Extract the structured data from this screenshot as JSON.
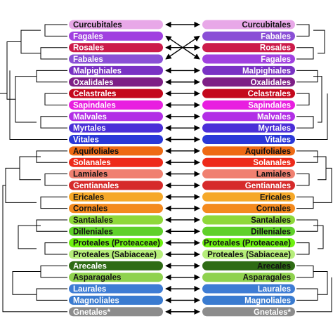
{
  "left_column": [
    {
      "label": "Curcubitales",
      "color": "#e8a8e8",
      "text_color": "#111111"
    },
    {
      "label": "Fagales",
      "color": "#a040e0",
      "text_color": "#ffffff"
    },
    {
      "label": "Rosales",
      "color": "#cc1b4a",
      "text_color": "#ffffff"
    },
    {
      "label": "Fabales",
      "color": "#8a4fd6",
      "text_color": "#ffffff"
    },
    {
      "label": "Malpighiales",
      "color": "#7a32c4",
      "text_color": "#ffffff"
    },
    {
      "label": "Oxalidales",
      "color": "#7e1f86",
      "text_color": "#ffffff"
    },
    {
      "label": "Celastrales",
      "color": "#c4081c",
      "text_color": "#ffffff"
    },
    {
      "label": "Sapindales",
      "color": "#e81fe0",
      "text_color": "#ffffff"
    },
    {
      "label": "Malvales",
      "color": "#b22ee6",
      "text_color": "#ffffff"
    },
    {
      "label": "Myrtales",
      "color": "#4a2ed8",
      "text_color": "#ffffff"
    },
    {
      "label": "Vitales",
      "color": "#2a38d8",
      "text_color": "#ffffff"
    },
    {
      "label": "Aquifoliales",
      "color": "#ee6a14",
      "text_color": "#111111"
    },
    {
      "label": "Solanales",
      "color": "#ee2a1a",
      "text_color": "#ffffff"
    },
    {
      "label": "Lamiales",
      "color": "#f08070",
      "text_color": "#111111"
    },
    {
      "label": "Gentianales",
      "color": "#d62a2a",
      "text_color": "#ffffff"
    },
    {
      "label": "Ericales",
      "color": "#f6a828",
      "text_color": "#111111"
    },
    {
      "label": "Cornales",
      "color": "#f48a1e",
      "text_color": "#111111"
    },
    {
      "label": "Santalales",
      "color": "#8ed83a",
      "text_color": "#111111"
    },
    {
      "label": "Dilleniales",
      "color": "#5fd02a",
      "text_color": "#111111"
    },
    {
      "label": "Proteales (Proteaceae)",
      "color": "#6ef010",
      "text_color": "#111111"
    },
    {
      "label": "Proteales (Sabiaceae)",
      "color": "#b6ee7a",
      "text_color": "#111111"
    },
    {
      "label": "Arecales",
      "color": "#2e6b14",
      "text_color": "#ffffff"
    },
    {
      "label": "Asparagales",
      "color": "#8fd24e",
      "text_color": "#111111"
    },
    {
      "label": "Laurales",
      "color": "#3e7cd4",
      "text_color": "#ffffff"
    },
    {
      "label": "Magnoliales",
      "color": "#3a7bd0",
      "text_color": "#ffffff"
    },
    {
      "label": "Gnetales*",
      "color": "#8c8c8c",
      "text_color": "#ffffff"
    }
  ],
  "right_column": [
    {
      "label": "Curcubitales",
      "color": "#e8a8e8",
      "text_color": "#111111"
    },
    {
      "label": "Fabales",
      "color": "#8a4fd6",
      "text_color": "#ffffff"
    },
    {
      "label": "Rosales",
      "color": "#cc1b4a",
      "text_color": "#ffffff"
    },
    {
      "label": "Fagales",
      "color": "#a040e0",
      "text_color": "#ffffff"
    },
    {
      "label": "Malpighiales",
      "color": "#7a32c4",
      "text_color": "#ffffff"
    },
    {
      "label": "Oxalidales",
      "color": "#7e1f86",
      "text_color": "#ffffff"
    },
    {
      "label": "Celastrales",
      "color": "#c4081c",
      "text_color": "#ffffff"
    },
    {
      "label": "Sapindales",
      "color": "#e81fe0",
      "text_color": "#ffffff"
    },
    {
      "label": "Malvales",
      "color": "#b22ee6",
      "text_color": "#ffffff"
    },
    {
      "label": "Myrtales",
      "color": "#4a2ed8",
      "text_color": "#ffffff"
    },
    {
      "label": "Vitales",
      "color": "#2a38d8",
      "text_color": "#ffffff"
    },
    {
      "label": "Aquifoliales",
      "color": "#ee6a14",
      "text_color": "#111111"
    },
    {
      "label": "Solanales",
      "color": "#ee2a1a",
      "text_color": "#ffffff"
    },
    {
      "label": "Lamiales",
      "color": "#f08070",
      "text_color": "#111111"
    },
    {
      "label": "Gentianales",
      "color": "#d62a2a",
      "text_color": "#ffffff"
    },
    {
      "label": "Ericales",
      "color": "#f6a828",
      "text_color": "#111111"
    },
    {
      "label": "Cornales",
      "color": "#f48a1e",
      "text_color": "#111111"
    },
    {
      "label": "Santalales",
      "color": "#8ed83a",
      "text_color": "#111111"
    },
    {
      "label": "Dilleniales",
      "color": "#5fd02a",
      "text_color": "#111111"
    },
    {
      "label": "Proteales (Proteaceae)",
      "color": "#6ef010",
      "text_color": "#111111"
    },
    {
      "label": "Proteales (Sabiaceae)",
      "color": "#b6ee7a",
      "text_color": "#111111"
    },
    {
      "label": "Arecales",
      "color": "#2e6b14",
      "text_color": "#111111"
    },
    {
      "label": "Asparagales",
      "color": "#8fd24e",
      "text_color": "#111111"
    },
    {
      "label": "Laurales",
      "color": "#3e7cd4",
      "text_color": "#ffffff"
    },
    {
      "label": "Magnoliales",
      "color": "#3a7bd0",
      "text_color": "#ffffff"
    },
    {
      "label": "Gnetales*",
      "color": "#8c8c8c",
      "text_color": "#ffffff"
    }
  ],
  "links": [
    [
      0,
      0
    ],
    [
      1,
      3
    ],
    [
      2,
      2
    ],
    [
      3,
      1
    ],
    [
      4,
      4
    ],
    [
      5,
      5
    ],
    [
      6,
      6
    ],
    [
      7,
      7
    ],
    [
      8,
      8
    ],
    [
      9,
      9
    ],
    [
      10,
      10
    ],
    [
      11,
      11
    ],
    [
      12,
      12
    ],
    [
      13,
      13
    ],
    [
      14,
      14
    ],
    [
      15,
      15
    ],
    [
      16,
      16
    ],
    [
      17,
      17
    ],
    [
      18,
      18
    ],
    [
      19,
      19
    ],
    [
      20,
      20
    ],
    [
      21,
      21
    ],
    [
      22,
      22
    ],
    [
      23,
      23
    ],
    [
      24,
      24
    ],
    [
      25,
      25
    ]
  ]
}
